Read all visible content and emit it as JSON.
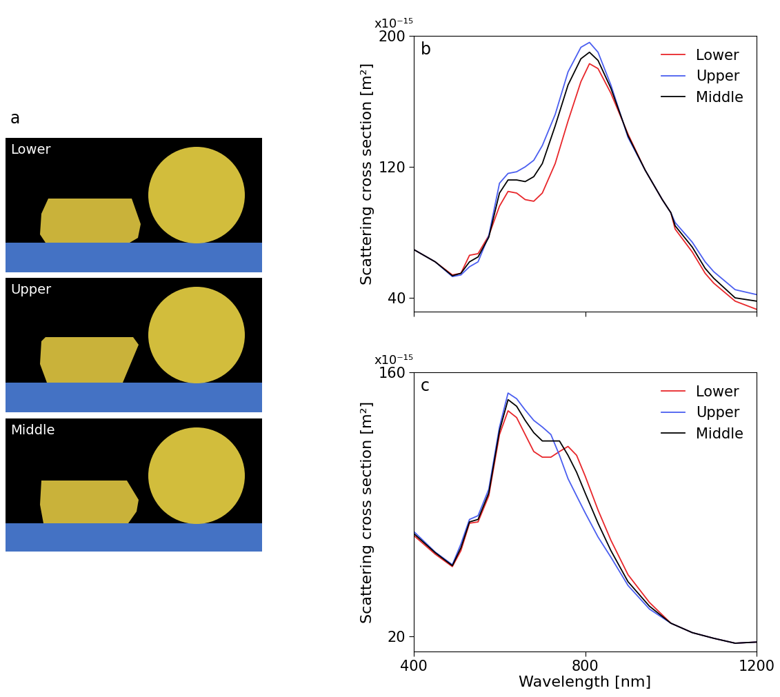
{
  "diagram": {
    "label": "a",
    "panels": [
      "Lower",
      "Upper",
      "Middle"
    ]
  },
  "chart_data": [
    {
      "type": "line",
      "title": "b",
      "annotation": "x10⁻¹⁵",
      "y_label": "Scattering cross section [m²]",
      "x": [
        400,
        450,
        490,
        510,
        530,
        550,
        575,
        600,
        620,
        640,
        660,
        680,
        700,
        730,
        760,
        790,
        810,
        830,
        860,
        900,
        940,
        980,
        1000,
        1010,
        1050,
        1080,
        1100,
        1150,
        1200
      ],
      "series": [
        {
          "name": "Lower",
          "color": "#e8262a",
          "values": [
            69.5,
            62,
            54,
            55,
            66,
            67,
            78,
            96,
            105,
            104,
            100,
            99,
            104,
            122,
            148,
            172,
            183,
            180,
            165,
            140,
            118,
            100,
            92,
            82,
            68,
            55,
            49,
            38,
            33
          ]
        },
        {
          "name": "Upper",
          "color": "#4a5ef0",
          "values": [
            69.5,
            62,
            53,
            54,
            59,
            62,
            78,
            110,
            116,
            117,
            120,
            124,
            133,
            152,
            178,
            193,
            196,
            190,
            170,
            138,
            118,
            100,
            92,
            86,
            74,
            62,
            56,
            45,
            42
          ]
        },
        {
          "name": "Middle",
          "color": "#000000",
          "values": [
            69.5,
            62,
            53.5,
            55,
            62,
            65,
            77,
            104,
            112,
            112,
            111,
            114,
            122,
            145,
            170,
            186,
            190,
            185,
            168,
            139,
            118,
            100,
            92,
            84,
            71,
            58,
            52,
            40,
            38
          ]
        }
      ],
      "xlim": [
        400,
        1200
      ],
      "xticks": [
        400,
        800,
        1200
      ],
      "ylim": [
        31.6,
        200
      ],
      "yticks": [
        40,
        120,
        200
      ],
      "legend": "upper right",
      "tick_labels": "y"
    },
    {
      "type": "line",
      "title": "c",
      "annotation": "x10⁻¹⁵",
      "y_label": "Scattering cross section [m²]",
      "x_label": "Wavelength [nm]",
      "x": [
        400,
        450,
        490,
        510,
        530,
        550,
        575,
        600,
        620,
        640,
        660,
        680,
        700,
        720,
        740,
        760,
        780,
        800,
        830,
        860,
        900,
        950,
        1000,
        1050,
        1100,
        1150,
        1200
      ],
      "series": [
        {
          "name": "Lower",
          "color": "#e8262a",
          "values": [
            73.5,
            63.6,
            57,
            65.5,
            80,
            80.7,
            94.5,
            127,
            139.6,
            136,
            127,
            118,
            115,
            115,
            118,
            120.7,
            116,
            105,
            87,
            71,
            52.7,
            38,
            27,
            22,
            19,
            16.4,
            17
          ]
        },
        {
          "name": "Upper",
          "color": "#4a5ef0",
          "values": [
            75.6,
            64.7,
            58,
            69,
            82,
            84,
            98,
            131,
            149,
            146,
            140,
            134.5,
            131,
            127,
            116,
            103.6,
            94.5,
            85.5,
            72.7,
            62,
            47,
            34.5,
            27,
            22,
            19,
            16.4,
            17
          ]
        },
        {
          "name": "Middle",
          "color": "#000000",
          "values": [
            74.5,
            64.4,
            57.5,
            67,
            80.7,
            82,
            96,
            129,
            145.5,
            142,
            134.5,
            128,
            123.6,
            123.6,
            123.6,
            116,
            107,
            96,
            80,
            65.5,
            49,
            36,
            27,
            22,
            19,
            16.4,
            17
          ]
        }
      ],
      "xlim": [
        400,
        1200
      ],
      "xticks": [
        400,
        800,
        1200
      ],
      "ylim": [
        12,
        160
      ],
      "yticks": [
        20,
        160
      ],
      "legend": "upper right"
    }
  ]
}
